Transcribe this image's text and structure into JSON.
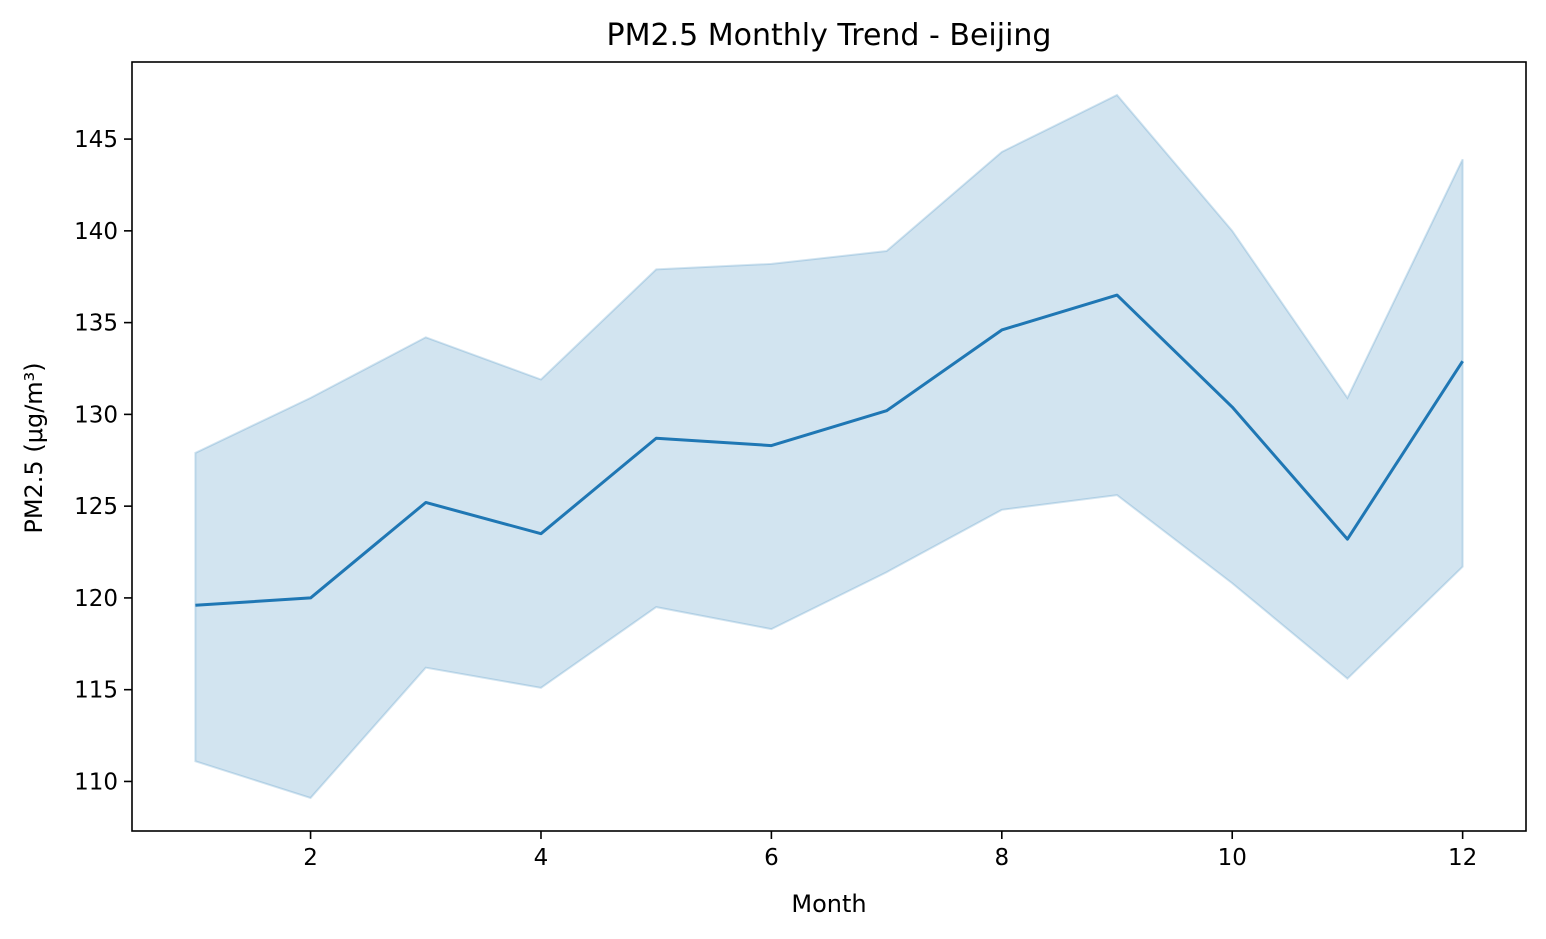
{
  "chart_data": {
    "type": "line",
    "title": "PM2.5 Monthly Trend - Beijing",
    "xlabel": "Month",
    "ylabel": "PM2.5 (μg/m³)",
    "xlim": [
      0.45,
      12.55
    ],
    "ylim": [
      107.3,
      149.2
    ],
    "x_ticks": [
      2,
      4,
      6,
      8,
      10,
      12
    ],
    "y_ticks": [
      110,
      115,
      120,
      125,
      130,
      135,
      140,
      145
    ],
    "grid": false,
    "legend": "none",
    "x": [
      1,
      2,
      3,
      4,
      5,
      6,
      7,
      8,
      9,
      10,
      11,
      12
    ],
    "series": [
      {
        "values": [
          119.6,
          120.0,
          125.2,
          123.5,
          128.7,
          128.3,
          130.2,
          134.6,
          136.5,
          130.4,
          123.2,
          132.9
        ],
        "lower": [
          111.1,
          109.1,
          116.2,
          115.1,
          119.5,
          118.3,
          121.4,
          124.8,
          125.6,
          120.8,
          115.6,
          121.7
        ],
        "upper": [
          127.9,
          130.9,
          134.2,
          131.9,
          137.9,
          138.2,
          138.9,
          144.3,
          147.4,
          140.0,
          130.9,
          143.9
        ]
      }
    ],
    "colors": {
      "line": "#1f77b4",
      "band_fill": "#1f77b4",
      "band_opacity": 0.2
    }
  }
}
